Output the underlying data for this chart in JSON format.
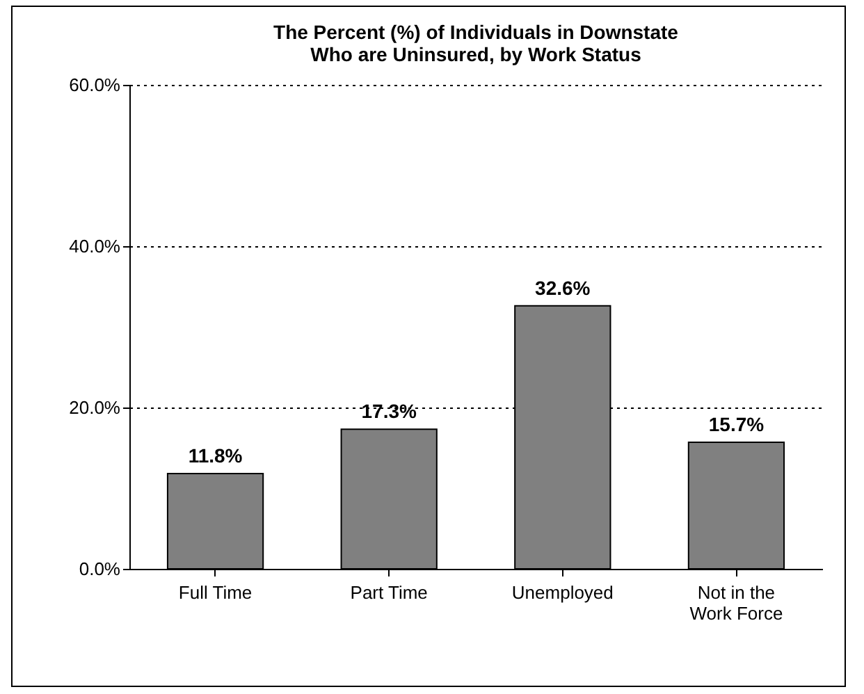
{
  "chart_data": {
    "type": "bar",
    "title": [
      "The Percent (%) of Individuals in Downstate",
      "Who are Uninsured,  by Work Status"
    ],
    "categories": [
      "Full Time",
      "Part Time",
      "Unemployed",
      "Not in the\nWork Force"
    ],
    "values": [
      11.8,
      17.3,
      32.6,
      15.7
    ],
    "color": "#808080",
    "value_labels": [
      "11.8%",
      "17.3%",
      "32.6%",
      "15.7%"
    ],
    "ylim": [
      0,
      60
    ],
    "yticks": [
      {
        "value": 0,
        "label": "0.0%"
      },
      {
        "value": 20,
        "label": "20.0%"
      },
      {
        "value": 40,
        "label": "40.0%"
      },
      {
        "value": 60,
        "label": "60.0%"
      }
    ],
    "grid": "y"
  }
}
